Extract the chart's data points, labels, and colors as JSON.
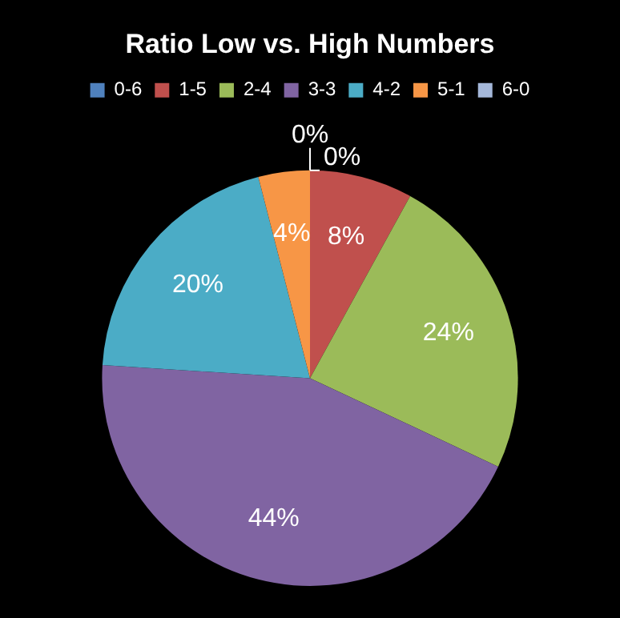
{
  "chart_data": {
    "type": "pie",
    "title": "Ratio Low vs. High Numbers",
    "categories": [
      "0-6",
      "1-5",
      "2-4",
      "3-3",
      "4-2",
      "5-1",
      "6-0"
    ],
    "values": [
      0,
      8,
      24,
      44,
      20,
      4,
      0
    ],
    "colors": [
      "#4f81bd",
      "#c0504d",
      "#9bbb59",
      "#8064a2",
      "#4bacc6",
      "#f79646",
      "#a5b8da"
    ],
    "value_labels": [
      "0%",
      "8%",
      "24%",
      "44%",
      "20%",
      "4%",
      "0%"
    ],
    "legend": "top"
  }
}
